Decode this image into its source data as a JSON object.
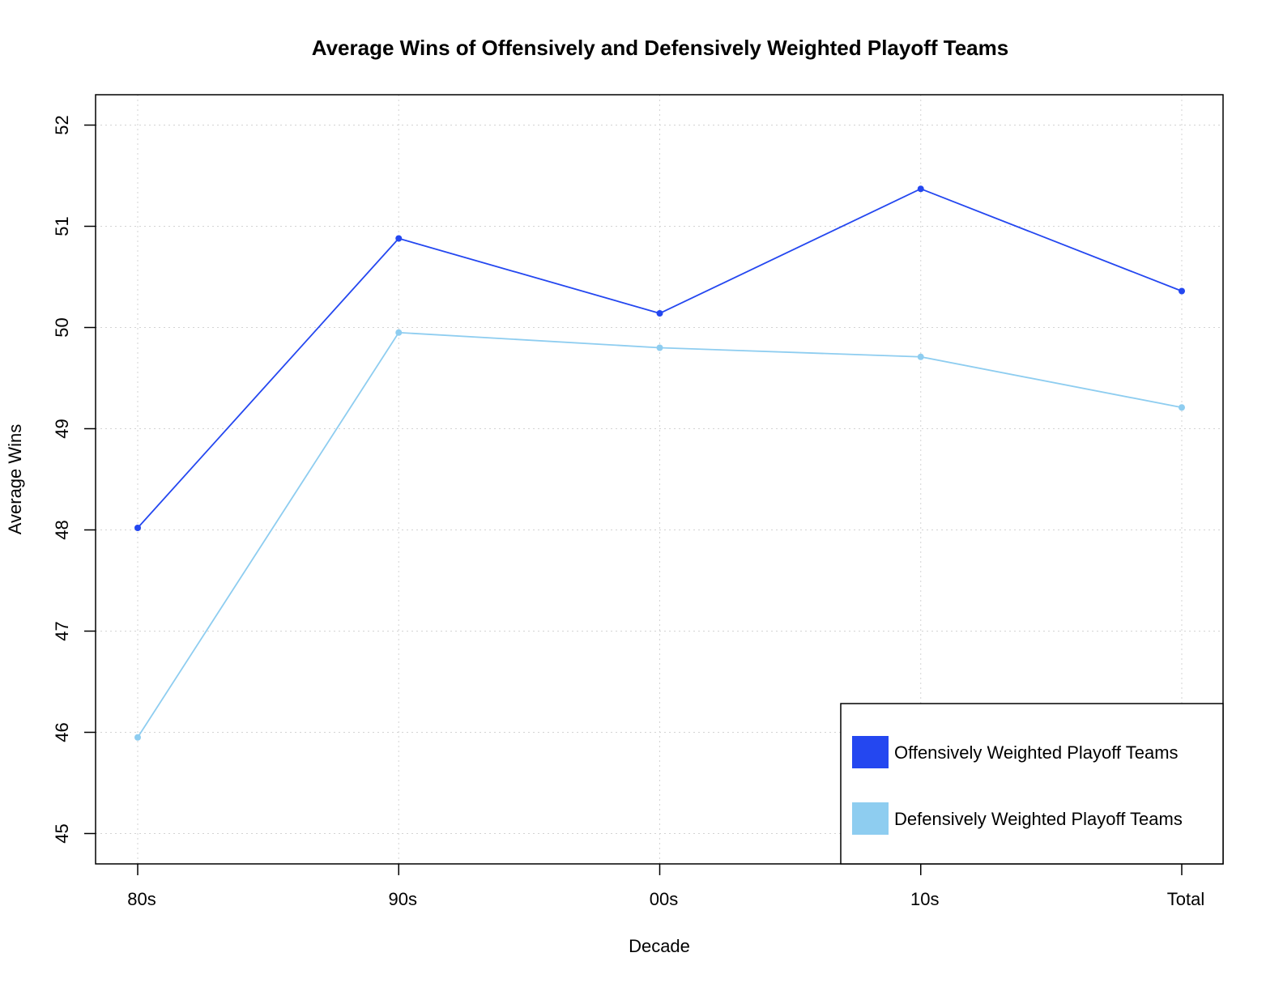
{
  "chart_data": {
    "type": "line",
    "title": "Average Wins of Offensively and Defensively Weighted Playoff Teams",
    "xlabel": "Decade",
    "ylabel": "Average Wins",
    "categories": [
      "80s",
      "90s",
      "00s",
      "10s",
      "Total"
    ],
    "yticks": [
      45,
      46,
      47,
      48,
      49,
      50,
      51,
      52
    ],
    "ylim": [
      44.7,
      52.3
    ],
    "grid": true,
    "legend_position": "bottom-right",
    "series": [
      {
        "name": "Offensively Weighted Playoff Teams",
        "color": "#2447f0",
        "values": [
          48.02,
          50.88,
          50.14,
          51.37,
          50.36
        ]
      },
      {
        "name": "Defensively Weighted Playoff Teams",
        "color": "#8ecdf0",
        "values": [
          45.95,
          49.95,
          49.8,
          49.71,
          49.21
        ]
      }
    ]
  }
}
